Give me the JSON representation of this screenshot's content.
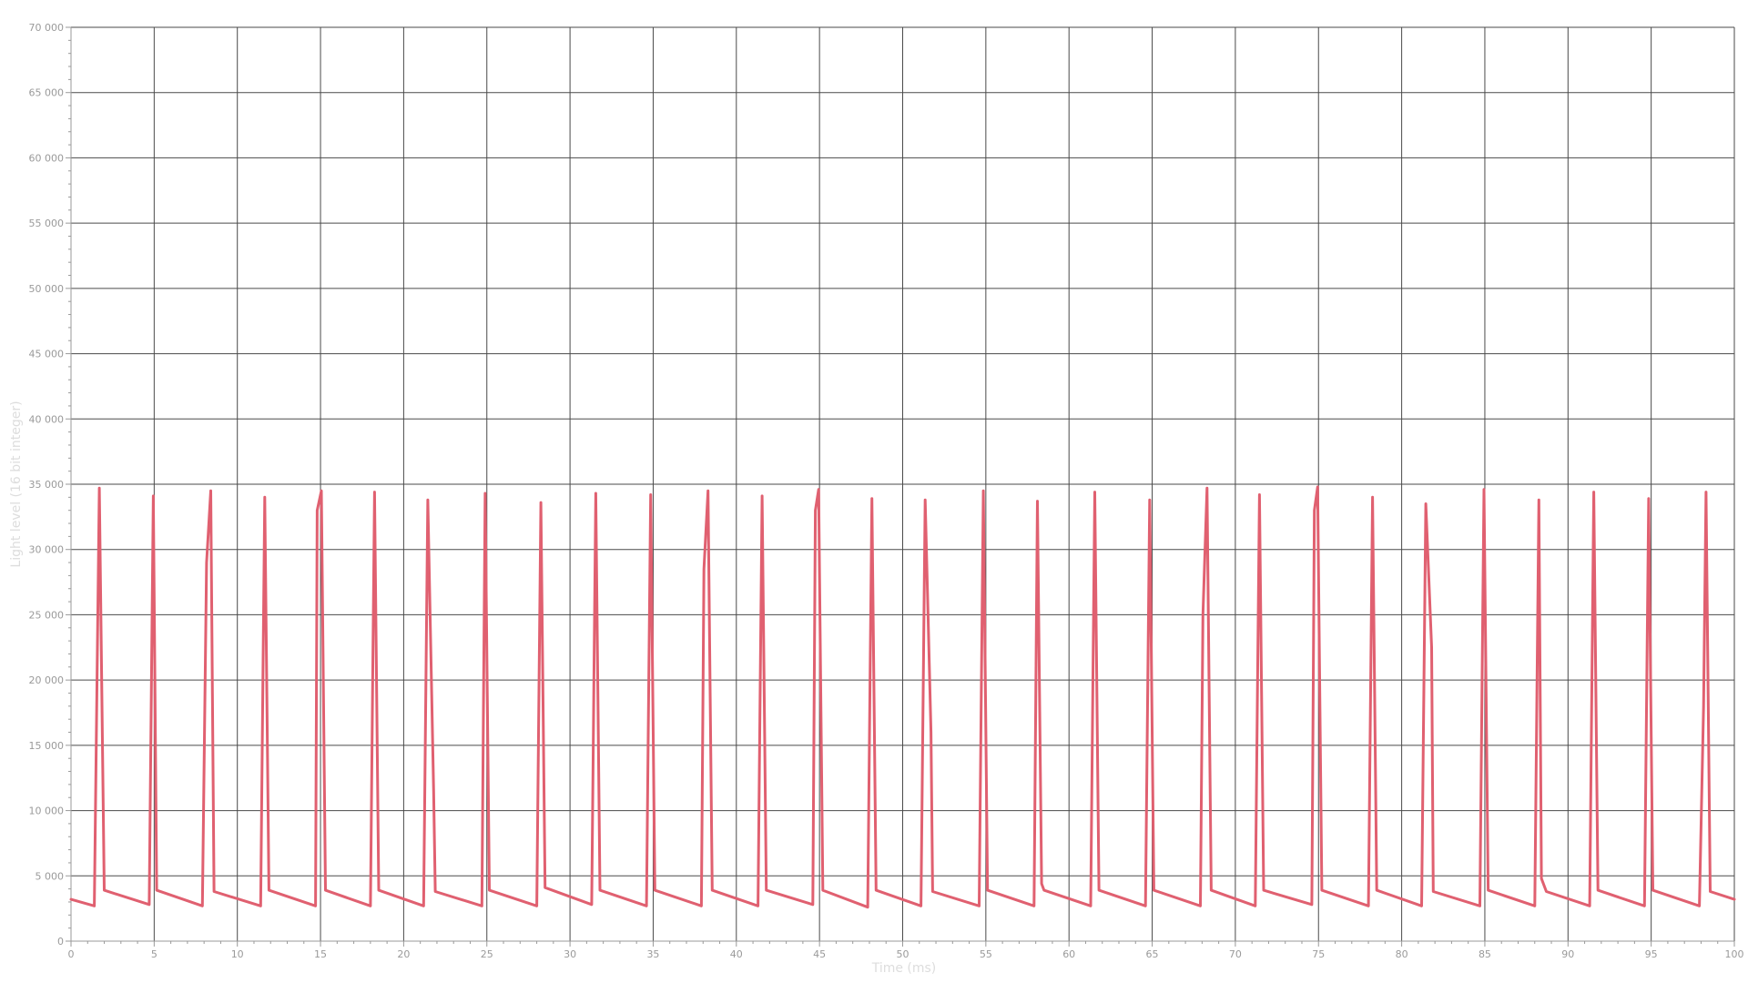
{
  "chart_data": {
    "type": "line",
    "title": "",
    "xlabel": "Time (ms)",
    "ylabel": "Light level (16 bit integer)",
    "xlim": [
      0,
      100
    ],
    "ylim": [
      0,
      70000
    ],
    "grid": true,
    "legend": "none",
    "x_ticks": [
      0,
      5,
      10,
      15,
      20,
      25,
      30,
      35,
      40,
      45,
      50,
      55,
      60,
      65,
      70,
      75,
      80,
      85,
      90,
      95,
      100
    ],
    "x_tick_labels": [
      "0",
      "5",
      "10",
      "15",
      "20",
      "25",
      "30",
      "35",
      "40",
      "45",
      "50",
      "55",
      "60",
      "65",
      "70",
      "75",
      "80",
      "85",
      "90",
      "95",
      "100"
    ],
    "y_ticks": [
      0,
      5000,
      10000,
      15000,
      20000,
      25000,
      30000,
      35000,
      40000,
      45000,
      50000,
      55000,
      60000,
      65000,
      70000
    ],
    "y_tick_labels": [
      "0",
      "5 000",
      "10 000",
      "15 000",
      "20 000",
      "25 000",
      "30 000",
      "35 000",
      "40 000",
      "45 000",
      "50 000",
      "55 000",
      "60 000",
      "65 000",
      "70 000"
    ],
    "colors": {
      "line": "#e06070",
      "grid": "#4a4a4a",
      "axis": "#9a9a9a"
    },
    "series": [
      {
        "color": "#e06070",
        "points": [
          [
            0,
            3200
          ],
          [
            1.4,
            2700
          ],
          [
            1.7,
            34700
          ],
          [
            2.0,
            3900
          ],
          [
            4.7,
            2800
          ],
          [
            4.95,
            34100
          ],
          [
            5.15,
            3900
          ],
          [
            7.9,
            2700
          ],
          [
            8.15,
            29000
          ],
          [
            8.4,
            34500
          ],
          [
            8.6,
            3800
          ],
          [
            11.4,
            2700
          ],
          [
            11.65,
            34000
          ],
          [
            11.9,
            3900
          ],
          [
            14.7,
            2700
          ],
          [
            14.8,
            33000
          ],
          [
            15.05,
            34500
          ],
          [
            15.3,
            3900
          ],
          [
            18.0,
            2700
          ],
          [
            18.25,
            34400
          ],
          [
            18.5,
            3900
          ],
          [
            21.2,
            2700
          ],
          [
            21.45,
            33800
          ],
          [
            21.8,
            11500
          ],
          [
            21.9,
            3800
          ],
          [
            24.7,
            2700
          ],
          [
            24.9,
            34300
          ],
          [
            25.15,
            3900
          ],
          [
            28.0,
            2700
          ],
          [
            28.25,
            33600
          ],
          [
            28.5,
            4100
          ],
          [
            31.3,
            2800
          ],
          [
            31.55,
            34300
          ],
          [
            31.8,
            3900
          ],
          [
            34.6,
            2700
          ],
          [
            34.85,
            34200
          ],
          [
            35.1,
            3900
          ],
          [
            37.9,
            2700
          ],
          [
            38.05,
            28500
          ],
          [
            38.3,
            34500
          ],
          [
            38.55,
            3900
          ],
          [
            41.3,
            2700
          ],
          [
            41.55,
            34100
          ],
          [
            41.8,
            3900
          ],
          [
            44.6,
            2800
          ],
          [
            44.75,
            33000
          ],
          [
            44.95,
            34600
          ],
          [
            45.2,
            3900
          ],
          [
            47.9,
            2600
          ],
          [
            48.15,
            33900
          ],
          [
            48.4,
            3900
          ],
          [
            51.1,
            2700
          ],
          [
            51.35,
            33800
          ],
          [
            51.7,
            16000
          ],
          [
            51.8,
            3800
          ],
          [
            54.6,
            2700
          ],
          [
            54.85,
            34500
          ],
          [
            55.1,
            3900
          ],
          [
            57.9,
            2700
          ],
          [
            58.1,
            33700
          ],
          [
            58.35,
            4400
          ],
          [
            58.5,
            3900
          ],
          [
            61.3,
            2700
          ],
          [
            61.55,
            34400
          ],
          [
            61.8,
            3900
          ],
          [
            64.6,
            2700
          ],
          [
            64.85,
            33800
          ],
          [
            65.1,
            3900
          ],
          [
            67.9,
            2700
          ],
          [
            68.05,
            25000
          ],
          [
            68.3,
            34700
          ],
          [
            68.55,
            3900
          ],
          [
            71.2,
            2700
          ],
          [
            71.45,
            34200
          ],
          [
            71.7,
            3900
          ],
          [
            74.6,
            2800
          ],
          [
            74.75,
            33000
          ],
          [
            74.95,
            34800
          ],
          [
            75.2,
            3900
          ],
          [
            78.0,
            2700
          ],
          [
            78.25,
            34000
          ],
          [
            78.5,
            3900
          ],
          [
            81.2,
            2700
          ],
          [
            81.45,
            33500
          ],
          [
            81.8,
            22500
          ],
          [
            81.9,
            3800
          ],
          [
            84.7,
            2700
          ],
          [
            84.95,
            34600
          ],
          [
            85.2,
            3900
          ],
          [
            88.0,
            2700
          ],
          [
            88.25,
            33800
          ],
          [
            88.4,
            4800
          ],
          [
            88.7,
            3800
          ],
          [
            91.3,
            2700
          ],
          [
            91.55,
            34400
          ],
          [
            91.8,
            3900
          ],
          [
            94.6,
            2700
          ],
          [
            94.85,
            33900
          ],
          [
            95.1,
            3900
          ],
          [
            97.9,
            2700
          ],
          [
            98.15,
            18000
          ],
          [
            98.3,
            34400
          ],
          [
            98.55,
            3800
          ],
          [
            100,
            3200
          ]
        ]
      }
    ]
  }
}
